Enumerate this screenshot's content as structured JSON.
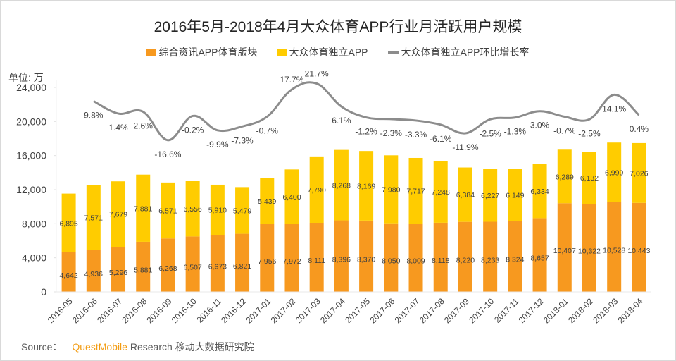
{
  "chart_data": {
    "type": "bar",
    "stacked": true,
    "title": "2016年5月-2018年4月大众体育APP行业月活跃用户规模",
    "unit_label": "单位: 万",
    "ylabel": "",
    "xlabel": "",
    "ylim": [
      0,
      24000
    ],
    "yticks": [
      0,
      4000,
      8000,
      12000,
      16000,
      20000,
      24000
    ],
    "ytick_labels": [
      "0",
      "4,000",
      "8,000",
      "12,000",
      "16,000",
      "20,000",
      "24,000"
    ],
    "legend_position": "top-center",
    "grid": false,
    "categories": [
      "2016-05",
      "2016-06",
      "2016-07",
      "2016-08",
      "2016-09",
      "2016-10",
      "2016-11",
      "2016-12",
      "2017-01",
      "2017-02",
      "2017-03",
      "2017-04",
      "2017-05",
      "2017-06",
      "2017-07",
      "2017-08",
      "2017-09",
      "2017-10",
      "2017-11",
      "2017-12",
      "2018-01",
      "2018-02",
      "2018-03",
      "2018-04"
    ],
    "series": [
      {
        "name": "综合资讯APP体育版块",
        "type": "bar",
        "color": "#F7991F",
        "values": [
          4642,
          4936,
          5296,
          5881,
          6268,
          6507,
          6673,
          6821,
          7956,
          7972,
          8111,
          8396,
          8370,
          8050,
          8009,
          8118,
          8220,
          8233,
          8324,
          8657,
          10407,
          10322,
          10528,
          10443
        ],
        "labels": [
          "4,642",
          "4,936",
          "5,296",
          "5,881",
          "6,268",
          "6,507",
          "6,673",
          "6,821",
          "7,956",
          "7,972",
          "8,111",
          "8,396",
          "8,370",
          "8,050",
          "8,009",
          "8,118",
          "8,220",
          "8,233",
          "8,324",
          "8,657",
          "10,407",
          "10,322",
          "10,528",
          "10,443"
        ]
      },
      {
        "name": "大众体育独立APP",
        "type": "bar",
        "color": "#FFCC00",
        "values": [
          6895,
          7571,
          7679,
          7881,
          6571,
          6556,
          5910,
          5479,
          5439,
          6400,
          7790,
          8268,
          8169,
          7980,
          7717,
          7248,
          6384,
          6227,
          6149,
          6334,
          6289,
          6132,
          6999,
          7026
        ],
        "labels": [
          "6,895",
          "7,571",
          "7,679",
          "7,881",
          "6,571",
          "6,556",
          "5,910",
          "5,479",
          "5,439",
          "6,400",
          "7,790",
          "8,268",
          "8,169",
          "7,980",
          "7,717",
          "7,248",
          "6,384",
          "6,227",
          "6,149",
          "6,334",
          "6,289",
          "6,132",
          "6,999",
          "7,026"
        ]
      },
      {
        "name": "大众体育独立APP环比增长率",
        "type": "line",
        "color": "#8C8C8C",
        "values": [
          null,
          9.8,
          1.4,
          2.6,
          -16.6,
          -0.2,
          -9.9,
          -7.3,
          -0.7,
          17.7,
          21.7,
          6.1,
          -1.2,
          -2.3,
          -3.3,
          -6.1,
          -11.9,
          -2.5,
          -1.3,
          3.0,
          -0.7,
          -2.5,
          14.1,
          0.4
        ],
        "labels": [
          "",
          "9.8%",
          "1.4%",
          "2.6%",
          "-16.6%",
          "-0.2%",
          "-9.9%",
          "-7.3%",
          "-0.7%",
          "17.7%",
          "21.7%",
          "6.1%",
          "-1.2%",
          "-2.3%",
          "-3.3%",
          "-6.1%",
          "-11.9%",
          "-2.5%",
          "-1.3%",
          "3.0%",
          "-0.7%",
          "-2.5%",
          "14.1%",
          "0.4%"
        ]
      }
    ]
  },
  "source": {
    "prefix": "Source：",
    "brand": "QuestMobile",
    "suffix": "Research 移动大数据研究院"
  }
}
